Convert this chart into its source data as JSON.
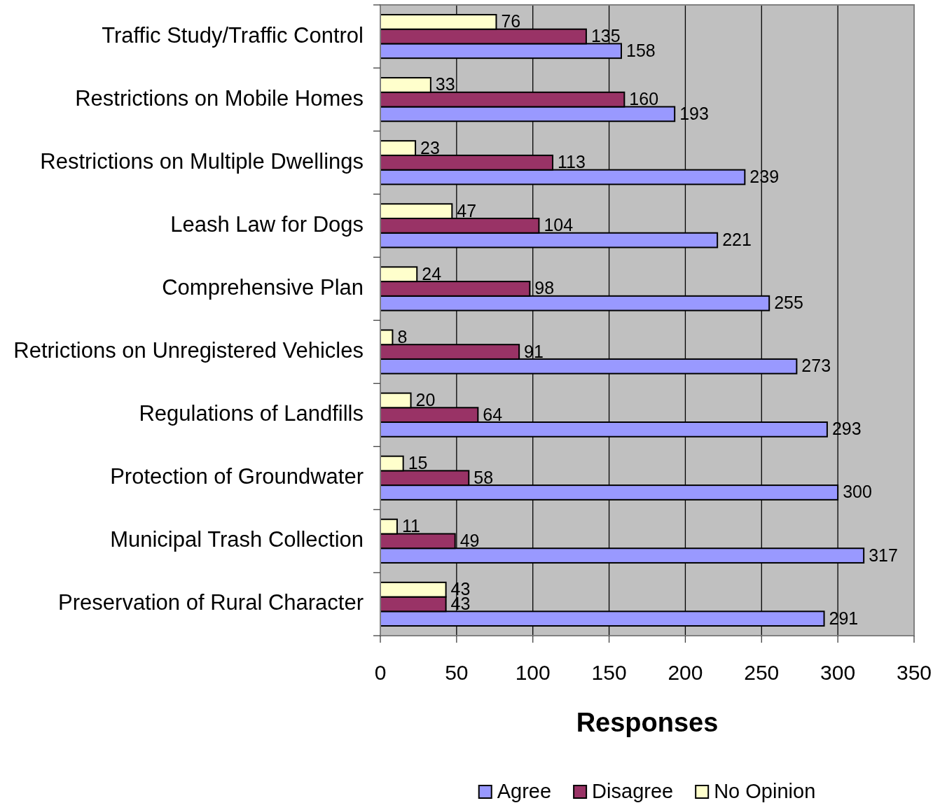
{
  "chart_data": {
    "type": "bar",
    "orientation": "horizontal",
    "categories": [
      "Traffic Study/Traffic Control",
      "Restrictions on Mobile Homes",
      "Restrictions on Multiple Dwellings",
      "Leash Law for Dogs",
      "Comprehensive Plan",
      "Retrictions on Unregistered Vehicles",
      "Regulations of Landfills",
      "Protection of Groundwater",
      "Municipal Trash Collection",
      "Preservation of Rural Character"
    ],
    "series": [
      {
        "name": "Agree",
        "color": "#9999ff",
        "values": [
          158,
          193,
          239,
          221,
          255,
          273,
          293,
          300,
          317,
          291
        ]
      },
      {
        "name": "Disagree",
        "color": "#993366",
        "values": [
          135,
          160,
          113,
          104,
          98,
          91,
          64,
          58,
          49,
          43
        ]
      },
      {
        "name": "No Opinion",
        "color": "#ffffcc",
        "values": [
          76,
          33,
          23,
          47,
          24,
          8,
          20,
          15,
          11,
          43
        ]
      }
    ],
    "xlim": [
      0,
      350
    ],
    "xticks": [
      0,
      50,
      100,
      150,
      200,
      250,
      300,
      350
    ],
    "xlabel": "Responses",
    "grid": "x",
    "legend": "bottom",
    "data_labels": true
  }
}
